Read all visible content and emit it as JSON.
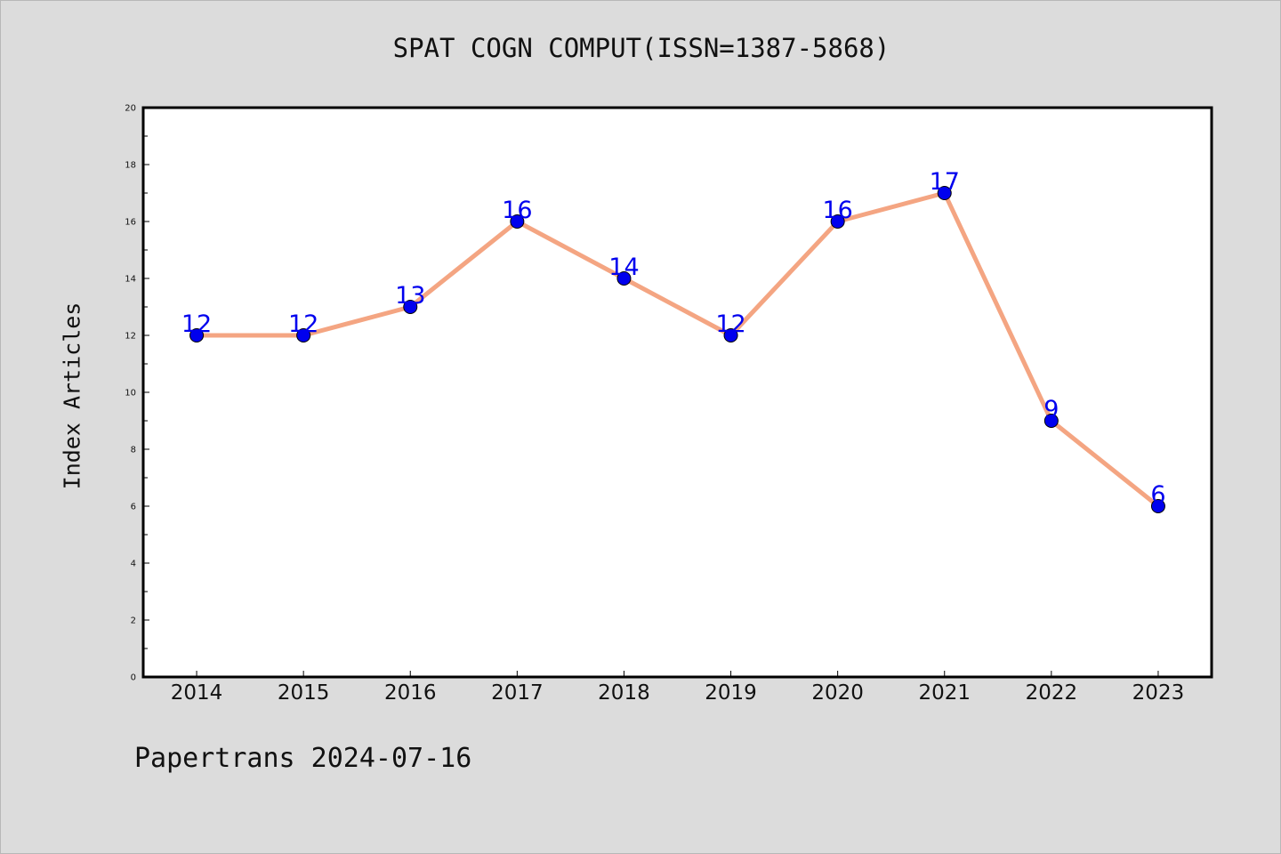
{
  "chart_data": {
    "type": "line",
    "title": "SPAT COGN COMPUT(ISSN=1387-5868)",
    "xlabel": "",
    "ylabel": "Index Articles",
    "categories": [
      "2014",
      "2015",
      "2016",
      "2017",
      "2018",
      "2019",
      "2020",
      "2021",
      "2022",
      "2023"
    ],
    "series": [
      {
        "values": [
          12,
          12,
          13,
          16,
          14,
          12,
          16,
          17,
          9,
          6
        ],
        "line_color": "#f4a582",
        "marker_color": "#0000ee"
      }
    ],
    "ylim": [
      0,
      20
    ],
    "yticks": [
      0,
      2,
      4,
      6,
      8,
      10,
      12,
      14,
      16,
      18,
      20
    ],
    "data_labels": true,
    "grid": false,
    "legend": "none"
  },
  "footer": {
    "text": "Papertrans 2024-07-16"
  },
  "colors": {
    "background": "#dcdcdc",
    "plot_background": "#ffffff",
    "line": "#f4a582",
    "marker": "#0000ee",
    "label": "#0000ee"
  }
}
